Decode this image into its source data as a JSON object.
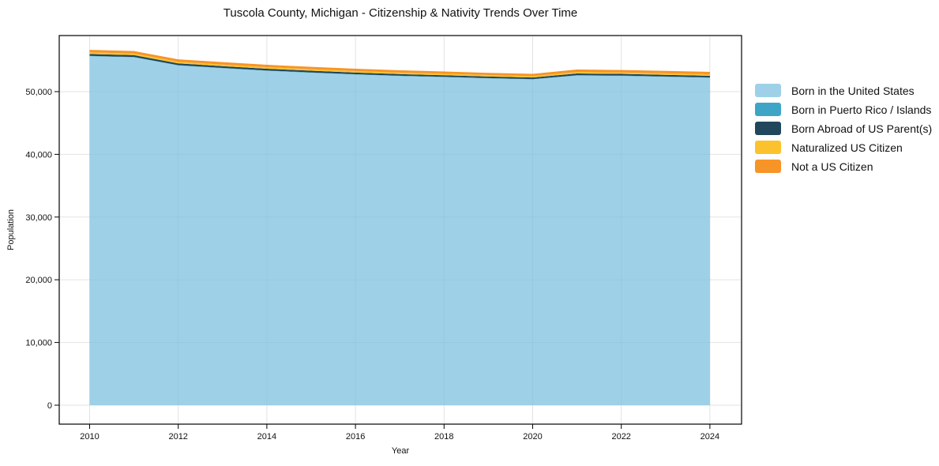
{
  "title": "Tuscola County, Michigan - Citizenship & Nativity Trends Over Time",
  "chart_data": {
    "type": "area",
    "stacked": true,
    "title": "Tuscola County, Michigan - Citizenship & Nativity Trends Over Time",
    "xlabel": "Year",
    "ylabel": "Population",
    "grid": true,
    "legend_position": "right",
    "x": [
      2010,
      2011,
      2012,
      2013,
      2014,
      2015,
      2016,
      2017,
      2018,
      2019,
      2020,
      2021,
      2022,
      2023,
      2024
    ],
    "xticks": [
      2010,
      2012,
      2014,
      2016,
      2018,
      2020,
      2022,
      2024
    ],
    "xtick_labels": [
      "2010",
      "2012",
      "2014",
      "2016",
      "2018",
      "2020",
      "2022",
      "2024"
    ],
    "yticks": [
      0,
      10000,
      20000,
      30000,
      40000,
      50000
    ],
    "ytick_labels": [
      "0",
      "10,000",
      "20,000",
      "30,000",
      "40,000",
      "50,000"
    ],
    "ylim": [
      0,
      59000
    ],
    "xlim": [
      2009.3,
      2024.7
    ],
    "series": [
      {
        "name": "Born in the United States",
        "color": "#9ED1E8",
        "values": [
          55650,
          55480,
          54170,
          53730,
          53325,
          53010,
          52725,
          52485,
          52310,
          52105,
          51945,
          52570,
          52510,
          52365,
          52210
        ]
      },
      {
        "name": "Born in Puerto Rico / Islands",
        "color": "#3FA5C6",
        "values": [
          50,
          50,
          50,
          50,
          50,
          50,
          50,
          50,
          50,
          50,
          50,
          50,
          50,
          50,
          50
        ]
      },
      {
        "name": "Born Abroad of US Parent(s)",
        "color": "#20475C",
        "values": [
          300,
          295,
          290,
          285,
          280,
          275,
          270,
          265,
          260,
          258,
          255,
          270,
          268,
          266,
          265
        ]
      },
      {
        "name": "Naturalized US Citizen",
        "color": "#FCC22D",
        "values": [
          260,
          256,
          252,
          248,
          245,
          242,
          238,
          235,
          232,
          230,
          228,
          236,
          234,
          232,
          232
        ]
      },
      {
        "name": "Not a US Citizen",
        "color": "#F79428",
        "values": [
          400,
          396,
          392,
          388,
          380,
          374,
          368,
          364,
          360,
          356,
          352,
          394,
          390,
          388,
          395
        ]
      }
    ],
    "totals": [
      56660,
      56477,
      55154,
      54701,
      54280,
      53951,
      53651,
      53399,
      53212,
      52999,
      52830,
      53520,
      53452,
      53301,
      53152
    ]
  }
}
